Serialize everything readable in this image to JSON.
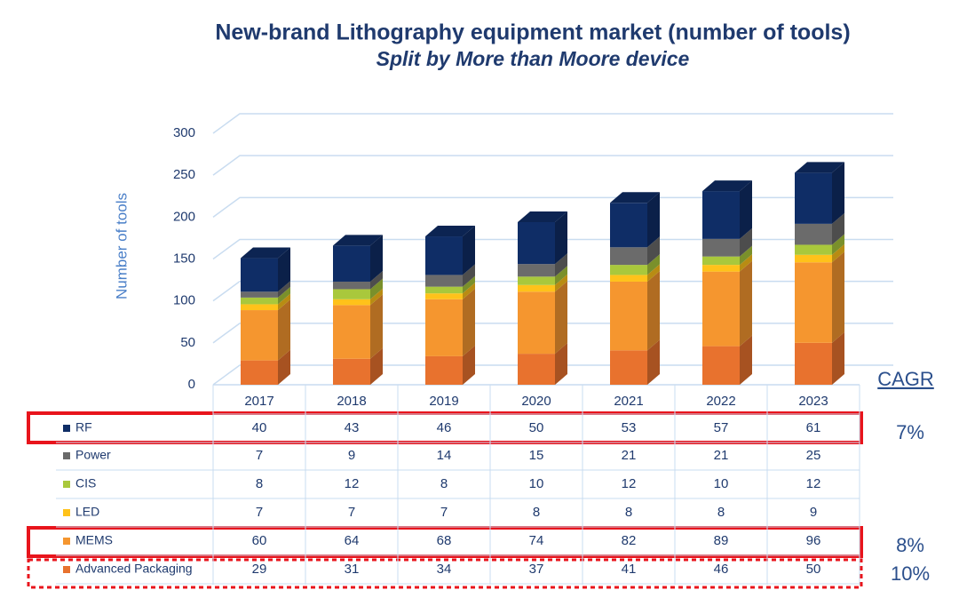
{
  "chart_data": {
    "type": "bar",
    "stacked": true,
    "title": "New-brand Lithography equipment market (number of tools)",
    "subtitle": "Split by More than Moore device",
    "y_label": "Number of tools",
    "categories": [
      "2017",
      "2018",
      "2019",
      "2020",
      "2021",
      "2022",
      "2023"
    ],
    "ylim": [
      0,
      300
    ],
    "yticks": [
      0,
      50,
      100,
      150,
      200,
      250,
      300
    ],
    "grid": true,
    "cagr_header": "CAGR",
    "series": [
      {
        "name": "Advanced Packaging",
        "color": "#e8722e",
        "values": [
          29,
          31,
          34,
          37,
          41,
          46,
          50
        ],
        "cagr": 10,
        "cagr_label": "10%"
      },
      {
        "name": "MEMS",
        "color": "#f5962f",
        "values": [
          60,
          64,
          68,
          74,
          82,
          89,
          96
        ],
        "cagr": 8,
        "cagr_label": "8%"
      },
      {
        "name": "LED",
        "color": "#ffc21a",
        "values": [
          7,
          7,
          7,
          8,
          8,
          8,
          9
        ]
      },
      {
        "name": "CIS",
        "color": "#a9c83c",
        "values": [
          8,
          12,
          8,
          10,
          12,
          10,
          12
        ]
      },
      {
        "name": "Power",
        "color": "#6b6b6b",
        "values": [
          7,
          9,
          14,
          15,
          21,
          21,
          25
        ]
      },
      {
        "name": "RF",
        "color": "#0f2d66",
        "values": [
          40,
          43,
          46,
          50,
          53,
          57,
          61
        ],
        "cagr": 7,
        "cagr_label": "7%"
      }
    ]
  }
}
